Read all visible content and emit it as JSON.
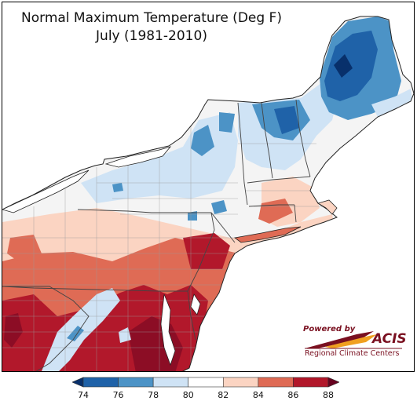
{
  "map": {
    "title_line1": "Normal Maximum Temperature (Deg F)",
    "title_line2": "July (1981-2010)",
    "region": "Northeast United States",
    "layers": [
      "temperature-shading",
      "state-boundaries",
      "county-boundaries",
      "coastline"
    ]
  },
  "logo": {
    "powered_by": "Powered by",
    "name": "ACIS",
    "subtitle": "Regional Climate Centers"
  },
  "legend": {
    "ticks": [
      "74",
      "76",
      "78",
      "80",
      "82",
      "84",
      "86",
      "88"
    ],
    "bins": [
      {
        "label": "<74",
        "color": "#08306b"
      },
      {
        "label": "74-76",
        "color": "#1f62a8"
      },
      {
        "label": "76-78",
        "color": "#4c93c6"
      },
      {
        "label": "78-80",
        "color": "#cfe3f5"
      },
      {
        "label": "80-82",
        "color": "#ffffff"
      },
      {
        "label": "82-84",
        "color": "#fbd4c2"
      },
      {
        "label": "84-86",
        "color": "#df6b55"
      },
      {
        "label": "86-88",
        "color": "#b2182b"
      },
      {
        "label": ">88",
        "color": "#67001f"
      }
    ]
  },
  "colors": {
    "land": "#f7f7f7",
    "water": "#ffffff",
    "boundary": "#555555"
  }
}
